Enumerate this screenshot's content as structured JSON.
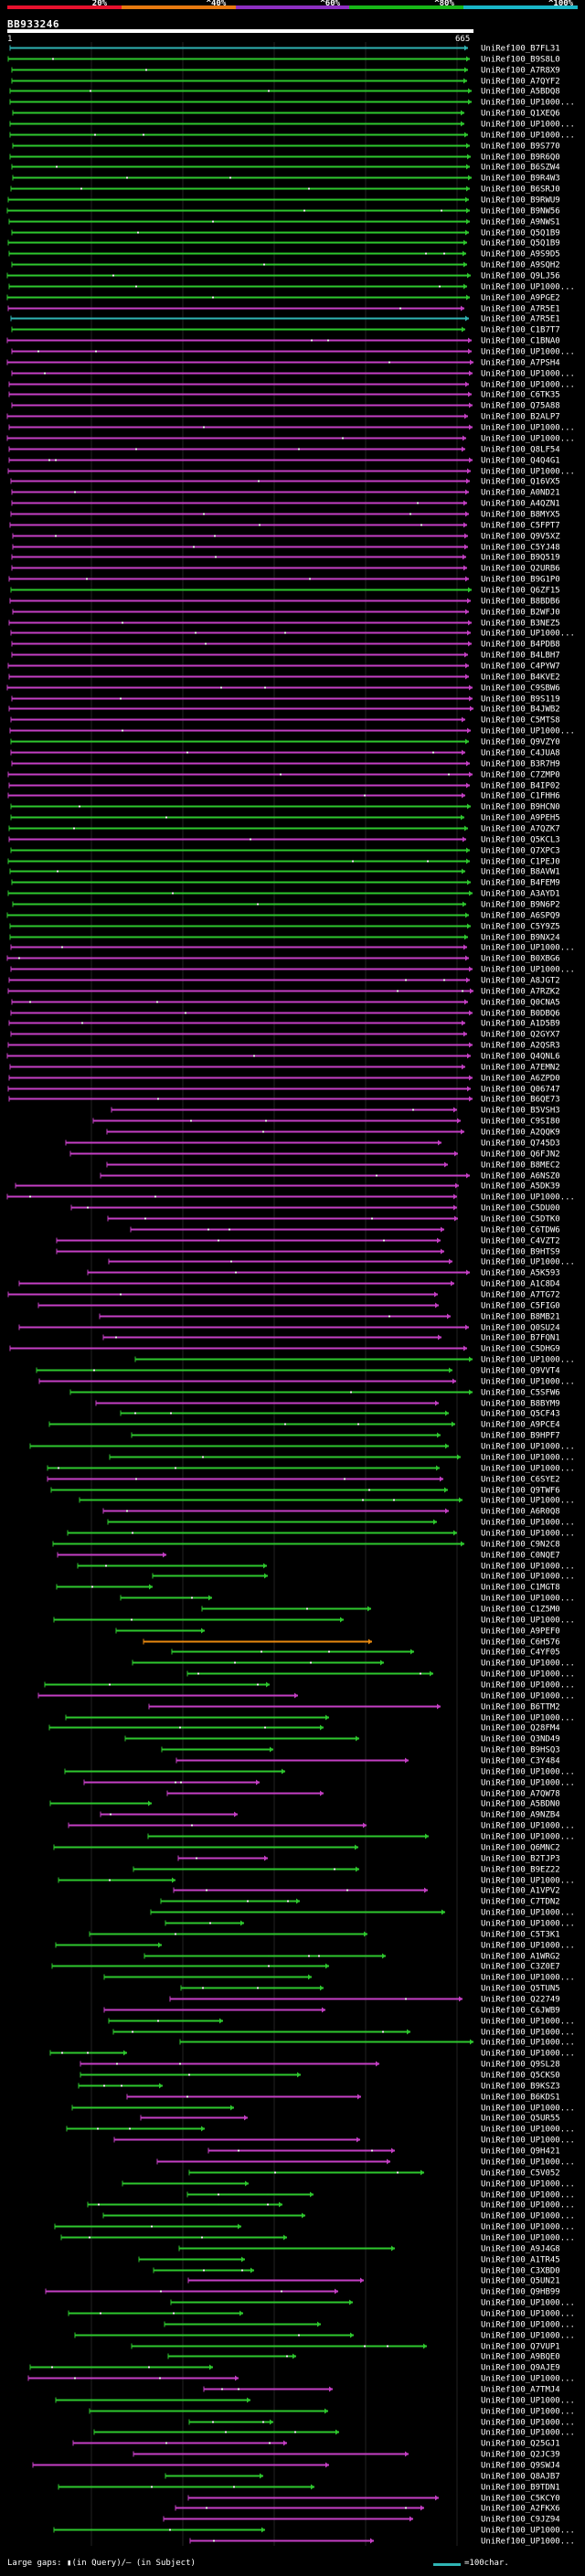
{
  "legend": {
    "segments": [
      {
        "label": "20%",
        "color": "#e8112d"
      },
      {
        "label": "^40%",
        "color": "#e87a10"
      },
      {
        "label": "^60%",
        "color": "#8e2fc2"
      },
      {
        "label": "^80%",
        "color": "#18b818"
      },
      {
        "label": "^100%",
        "color": "#19b6c8"
      }
    ]
  },
  "query": {
    "id": "BB933246",
    "start": "1",
    "end": "665"
  },
  "colors": {
    "green": "#2ec72e",
    "magenta": "#c43fc4",
    "cyan": "#2fb4b4",
    "orange": "#e8890f",
    "dot": "#f2f2f2"
  },
  "hits": [
    {
      "label": "UniRef100_B7FL31",
      "color": "cyan"
    },
    {
      "label": "UniRef100_B9S8L0",
      "color": "green"
    },
    {
      "label": "UniRef100_A7R8X9",
      "color": "green"
    },
    {
      "label": "UniRef100_A7QYF2",
      "color": "green"
    },
    {
      "label": "UniRef100_A5BDQ8",
      "color": "green"
    },
    {
      "label": "UniRef100_UP1000...",
      "color": "green"
    },
    {
      "label": "UniRef100_Q1XEQ6",
      "color": "green"
    },
    {
      "label": "UniRef100_UP1000...",
      "color": "green"
    },
    {
      "label": "UniRef100_UP1000...",
      "color": "green"
    },
    {
      "label": "UniRef100_B9S770",
      "color": "green"
    },
    {
      "label": "UniRef100_B9R6Q0",
      "color": "green"
    },
    {
      "label": "UniRef100_B6SZW4",
      "color": "green"
    },
    {
      "label": "UniRef100_B9R4W3",
      "color": "green"
    },
    {
      "label": "UniRef100_B6SRJ0",
      "color": "green"
    },
    {
      "label": "UniRef100_B9RWU9",
      "color": "green"
    },
    {
      "label": "UniRef100_B9NW56",
      "color": "green"
    },
    {
      "label": "UniRef100_A9NWS1",
      "color": "green"
    },
    {
      "label": "UniRef100_Q5Q1B9",
      "color": "green"
    },
    {
      "label": "UniRef100_Q5Q1B9",
      "color": "green"
    },
    {
      "label": "UniRef100_A9S9D5",
      "color": "green"
    },
    {
      "label": "UniRef100_A9SQH2",
      "color": "green"
    },
    {
      "label": "UniRef100_Q9LJ56",
      "color": "green"
    },
    {
      "label": "UniRef100_UP1000...",
      "color": "green"
    },
    {
      "label": "UniRef100_A9PGE2",
      "color": "green"
    },
    {
      "label": "UniRef100_A7R5E1",
      "color": "magenta"
    },
    {
      "label": "UniRef100_A7R5E1",
      "color": "cyan"
    },
    {
      "label": "UniRef100_C1B7T7",
      "color": "green"
    },
    {
      "label": "UniRef100_C1BNA0",
      "color": "magenta"
    },
    {
      "label": "UniRef100_UP1000...",
      "color": "magenta"
    },
    {
      "label": "UniRef100_A7PSH4",
      "color": "magenta"
    },
    {
      "label": "UniRef100_UP1000...",
      "color": "magenta"
    },
    {
      "label": "UniRef100_UP1000...",
      "color": "magenta"
    },
    {
      "label": "UniRef100_C6TK35",
      "color": "magenta"
    },
    {
      "label": "UniRef100_Q75A88",
      "color": "magenta"
    },
    {
      "label": "UniRef100_B2ALP7",
      "color": "magenta"
    },
    {
      "label": "UniRef100_UP1000...",
      "color": "magenta"
    },
    {
      "label": "UniRef100_UP1000...",
      "color": "magenta"
    },
    {
      "label": "UniRef100_Q8LF54",
      "color": "magenta"
    },
    {
      "label": "UniRef100_Q4Q4G1",
      "color": "magenta"
    },
    {
      "label": "UniRef100_UP1000...",
      "color": "magenta"
    },
    {
      "label": "UniRef100_Q16VX5",
      "color": "magenta"
    },
    {
      "label": "UniRef100_A0ND21",
      "color": "magenta"
    },
    {
      "label": "UniRef100_A4QZN1",
      "color": "magenta"
    },
    {
      "label": "UniRef100_B8MYX5",
      "color": "magenta"
    },
    {
      "label": "UniRef100_C5FPT7",
      "color": "magenta"
    },
    {
      "label": "UniRef100_Q9V5XZ",
      "color": "magenta"
    },
    {
      "label": "UniRef100_C5YJ48",
      "color": "magenta"
    },
    {
      "label": "UniRef100_B9Q519",
      "color": "magenta"
    },
    {
      "label": "UniRef100_Q2URB6",
      "color": "magenta"
    },
    {
      "label": "UniRef100_B9G1P0",
      "color": "magenta"
    },
    {
      "label": "UniRef100_Q6ZF15",
      "color": "green"
    },
    {
      "label": "UniRef100_B8BDB6",
      "color": "magenta"
    },
    {
      "label": "UniRef100_B2WFJ0",
      "color": "magenta"
    },
    {
      "label": "UniRef100_B3NEZ5",
      "color": "magenta"
    },
    {
      "label": "UniRef100_UP1000...",
      "color": "magenta"
    },
    {
      "label": "UniRef100_B4PDB8",
      "color": "magenta"
    },
    {
      "label": "UniRef100_B4LBH7",
      "color": "magenta"
    },
    {
      "label": "UniRef100_C4PYW7",
      "color": "magenta"
    },
    {
      "label": "UniRef100_B4KVE2",
      "color": "magenta"
    },
    {
      "label": "UniRef100_C9SBW6",
      "color": "magenta"
    },
    {
      "label": "UniRef100_B9S119",
      "color": "magenta"
    },
    {
      "label": "UniRef100_B4JWB2",
      "color": "magenta"
    },
    {
      "label": "UniRef100_C5MTS8",
      "color": "magenta"
    },
    {
      "label": "UniRef100_UP1000...",
      "color": "magenta"
    },
    {
      "label": "UniRef100_Q9VZY0",
      "color": "green"
    },
    {
      "label": "UniRef100_C4JUA8",
      "color": "magenta"
    },
    {
      "label": "UniRef100_B3R7H9",
      "color": "magenta"
    },
    {
      "label": "UniRef100_C7ZMP0",
      "color": "magenta"
    },
    {
      "label": "UniRef100_B4IP02",
      "color": "magenta"
    },
    {
      "label": "UniRef100_C1FHH6",
      "color": "magenta"
    },
    {
      "label": "UniRef100_B9HCN0",
      "color": "green"
    },
    {
      "label": "UniRef100_A9PEH5",
      "color": "green"
    },
    {
      "label": "UniRef100_A7QZK7",
      "color": "green"
    },
    {
      "label": "UniRef100_Q5KCL3",
      "color": "magenta"
    },
    {
      "label": "UniRef100_Q7XPC3",
      "color": "green"
    },
    {
      "label": "UniRef100_C1PEJ0",
      "color": "green"
    },
    {
      "label": "UniRef100_B8AVW1",
      "color": "green"
    },
    {
      "label": "UniRef100_B4FEM9",
      "color": "green"
    },
    {
      "label": "UniRef100_A3AYD1",
      "color": "green"
    },
    {
      "label": "UniRef100_B9N6P2",
      "color": "green"
    },
    {
      "label": "UniRef100_A6SPQ9",
      "color": "green"
    },
    {
      "label": "UniRef100_C5Y9Z5",
      "color": "green"
    },
    {
      "label": "UniRef100_B9NX24",
      "color": "green"
    },
    {
      "label": "UniRef100_UP1000...",
      "color": "magenta"
    },
    {
      "label": "UniRef100_B0XBG6",
      "color": "magenta"
    },
    {
      "label": "UniRef100_UP1000...",
      "color": "magenta"
    },
    {
      "label": "UniRef100_A8JGT2",
      "color": "magenta"
    },
    {
      "label": "UniRef100_A7RZK2",
      "color": "magenta"
    },
    {
      "label": "UniRef100_Q0CNA5",
      "color": "magenta"
    },
    {
      "label": "UniRef100_B0DBQ6",
      "color": "magenta"
    },
    {
      "label": "UniRef100_A1D5B9",
      "color": "magenta"
    },
    {
      "label": "UniRef100_Q2GYX7",
      "color": "magenta"
    },
    {
      "label": "UniRef100_A2QSR3",
      "color": "magenta"
    },
    {
      "label": "UniRef100_Q4QNL6",
      "color": "magenta"
    },
    {
      "label": "UniRef100_A7EMN2",
      "color": "magenta"
    },
    {
      "label": "UniRef100_A6ZPD0",
      "color": "magenta"
    },
    {
      "label": "UniRef100_Q06747",
      "color": "magenta"
    },
    {
      "label": "UniRef100_B6QE73",
      "color": "magenta"
    },
    {
      "label": "UniRef100_B5VSH3",
      "color": "magenta"
    },
    {
      "label": "UniRef100_C9SI80",
      "color": "magenta"
    },
    {
      "label": "UniRef100_A2QQK9",
      "color": "magenta"
    },
    {
      "label": "UniRef100_Q745D3",
      "color": "magenta"
    },
    {
      "label": "UniRef100_Q6FJN2",
      "color": "magenta"
    },
    {
      "label": "UniRef100_B8MEC2",
      "color": "magenta"
    },
    {
      "label": "UniRef100_A6NSZ0",
      "color": "magenta"
    },
    {
      "label": "UniRef100_A5DK39",
      "color": "magenta"
    },
    {
      "label": "UniRef100_UP1000...",
      "color": "magenta"
    },
    {
      "label": "UniRef100_C5DU00",
      "color": "magenta"
    },
    {
      "label": "UniRef100_C5DTK0",
      "color": "magenta"
    },
    {
      "label": "UniRef100_C6TDW6",
      "color": "magenta"
    },
    {
      "label": "UniRef100_C4VZT2",
      "color": "magenta"
    },
    {
      "label": "UniRef100_B9HTS9",
      "color": "magenta"
    },
    {
      "label": "UniRef100_UP1000...",
      "color": "magenta"
    },
    {
      "label": "UniRef100_A5K593",
      "color": "magenta"
    },
    {
      "label": "UniRef100_A1C8D4",
      "color": "magenta"
    },
    {
      "label": "UniRef100_A7TG72",
      "color": "magenta"
    },
    {
      "label": "UniRef100_C5FIG0",
      "color": "magenta"
    },
    {
      "label": "UniRef100_B8MB21",
      "color": "magenta"
    },
    {
      "label": "UniRef100_Q0SU24",
      "color": "magenta"
    },
    {
      "label": "UniRef100_B7FQN1",
      "color": "magenta"
    },
    {
      "label": "UniRef100_C5DHG9",
      "color": "magenta"
    },
    {
      "label": "UniRef100_UP1000...",
      "color": "green"
    },
    {
      "label": "UniRef100_Q9VVT4",
      "color": "green"
    },
    {
      "label": "UniRef100_UP1000...",
      "color": "magenta"
    },
    {
      "label": "UniRef100_C5SFW6",
      "color": "green"
    },
    {
      "label": "UniRef100_B8BYM9",
      "color": "magenta"
    },
    {
      "label": "UniRef100_Q5CF43",
      "color": "green"
    },
    {
      "label": "UniRef100_A9PCE4",
      "color": "green"
    },
    {
      "label": "UniRef100_B9HPF7",
      "color": "green"
    },
    {
      "label": "UniRef100_UP1000...",
      "color": "green"
    },
    {
      "label": "UniRef100_UP1000...",
      "color": "green"
    },
    {
      "label": "UniRef100_UP1000...",
      "color": "green"
    },
    {
      "label": "UniRef100_C6SYE2",
      "color": "magenta"
    },
    {
      "label": "UniRef100_Q9TWF6",
      "color": "green"
    },
    {
      "label": "UniRef100_UP1000...",
      "color": "green"
    },
    {
      "label": "UniRef100_A6R0Q8",
      "color": "magenta"
    },
    {
      "label": "UniRef100_UP1000...",
      "color": "green"
    },
    {
      "label": "UniRef100_UP1000...",
      "color": "green"
    },
    {
      "label": "UniRef100_C9N2C8",
      "color": "green"
    },
    {
      "label": "UniRef100_C0NQE7",
      "color": "magenta"
    },
    {
      "label": "UniRef100_UP1000...",
      "color": "green"
    },
    {
      "label": "UniRef100_UP1000...",
      "color": "green"
    },
    {
      "label": "UniRef100_C1MGT8",
      "color": "green"
    },
    {
      "label": "UniRef100_UP1000...",
      "color": "green"
    },
    {
      "label": "UniRef100_C1Z5M0",
      "color": "green"
    },
    {
      "label": "UniRef100_UP1000...",
      "color": "green"
    },
    {
      "label": "UniRef100_A9PEF0",
      "color": "green"
    },
    {
      "label": "UniRef100_C6H576",
      "color": "orange"
    },
    {
      "label": "UniRef100_C4YF05",
      "color": "green"
    },
    {
      "label": "UniRef100_UP1000...",
      "color": "green"
    },
    {
      "label": "UniRef100_UP1000...",
      "color": "green"
    },
    {
      "label": "UniRef100_UP1000...",
      "color": "green"
    },
    {
      "label": "UniRef100_UP1000...",
      "color": "magenta"
    },
    {
      "label": "UniRef100_B6TTM2",
      "color": "magenta"
    },
    {
      "label": "UniRef100_UP1000...",
      "color": "green"
    },
    {
      "label": "UniRef100_Q28FM4",
      "color": "green"
    },
    {
      "label": "UniRef100_Q3ND49",
      "color": "green"
    },
    {
      "label": "UniRef100_B9HSQ3",
      "color": "green"
    },
    {
      "label": "UniRef100_C3Y484",
      "color": "magenta"
    },
    {
      "label": "UniRef100_UP1000...",
      "color": "green"
    },
    {
      "label": "UniRef100_UP1000...",
      "color": "magenta"
    },
    {
      "label": "UniRef100_A7QW78",
      "color": "magenta"
    },
    {
      "label": "UniRef100_A5BDN0",
      "color": "green"
    },
    {
      "label": "UniRef100_A9NZB4",
      "color": "magenta"
    },
    {
      "label": "UniRef100_UP1000...",
      "color": "magenta"
    },
    {
      "label": "UniRef100_UP1000...",
      "color": "green"
    },
    {
      "label": "UniRef100_Q6MNC2",
      "color": "green"
    },
    {
      "label": "UniRef100_B2TJP3",
      "color": "magenta"
    },
    {
      "label": "UniRef100_B9EZ22",
      "color": "green"
    },
    {
      "label": "UniRef100_UP1000...",
      "color": "green"
    },
    {
      "label": "UniRef100_A1VPV2",
      "color": "magenta"
    },
    {
      "label": "UniRef100_C7TDN2",
      "color": "green"
    },
    {
      "label": "UniRef100_UP1000...",
      "color": "green"
    },
    {
      "label": "UniRef100_UP1000...",
      "color": "green"
    },
    {
      "label": "UniRef100_C5T3K1",
      "color": "green"
    },
    {
      "label": "UniRef100_UP1000...",
      "color": "green"
    },
    {
      "label": "UniRef100_A1WRG2",
      "color": "green"
    },
    {
      "label": "UniRef100_C3Z0E7",
      "color": "green"
    },
    {
      "label": "UniRef100_UP1000...",
      "color": "green"
    },
    {
      "label": "UniRef100_Q5TUN5",
      "color": "green"
    },
    {
      "label": "UniRef100_Q22749",
      "color": "magenta"
    },
    {
      "label": "UniRef100_C6JWB9",
      "color": "magenta"
    },
    {
      "label": "UniRef100_UP1000...",
      "color": "green"
    },
    {
      "label": "UniRef100_UP1000...",
      "color": "green"
    },
    {
      "label": "UniRef100_UP1000...",
      "color": "green"
    },
    {
      "label": "UniRef100_UP1000...",
      "color": "green"
    },
    {
      "label": "UniRef100_Q9SL28",
      "color": "magenta"
    },
    {
      "label": "UniRef100_Q5CKS0",
      "color": "green"
    },
    {
      "label": "UniRef100_B9KSZ3",
      "color": "green"
    },
    {
      "label": "UniRef100_B6KDS1",
      "color": "magenta"
    },
    {
      "label": "UniRef100_UP1000...",
      "color": "green"
    },
    {
      "label": "UniRef100_Q5UR55",
      "color": "magenta"
    },
    {
      "label": "UniRef100_UP1000...",
      "color": "green"
    },
    {
      "label": "UniRef100_UP1000...",
      "color": "magenta"
    },
    {
      "label": "UniRef100_Q9H421",
      "color": "magenta"
    },
    {
      "label": "UniRef100_UP1000...",
      "color": "magenta"
    },
    {
      "label": "UniRef100_C5V052",
      "color": "green"
    },
    {
      "label": "UniRef100_UP1000...",
      "color": "green"
    },
    {
      "label": "UniRef100_UP1000...",
      "color": "green"
    },
    {
      "label": "UniRef100_UP1000...",
      "color": "green"
    },
    {
      "label": "UniRef100_UP1000...",
      "color": "green"
    },
    {
      "label": "UniRef100_UP1000...",
      "color": "green"
    },
    {
      "label": "UniRef100_UP1000...",
      "color": "green"
    },
    {
      "label": "UniRef100_A9J4G8",
      "color": "green"
    },
    {
      "label": "UniRef100_A1TR45",
      "color": "green"
    },
    {
      "label": "UniRef100_C3XBD0",
      "color": "green"
    },
    {
      "label": "UniRef100_Q5UN21",
      "color": "magenta"
    },
    {
      "label": "UniRef100_Q9HB99",
      "color": "magenta"
    },
    {
      "label": "UniRef100_UP1000...",
      "color": "green"
    },
    {
      "label": "UniRef100_UP1000...",
      "color": "green"
    },
    {
      "label": "UniRef100_UP1000...",
      "color": "green"
    },
    {
      "label": "UniRef100_UP1000...",
      "color": "green"
    },
    {
      "label": "UniRef100_Q7VUP1",
      "color": "green"
    },
    {
      "label": "UniRef100_A9BQE0",
      "color": "green"
    },
    {
      "label": "UniRef100_Q9AJE9",
      "color": "green"
    },
    {
      "label": "UniRef100_UP1000...",
      "color": "magenta"
    },
    {
      "label": "UniRef100_A7TMJ4",
      "color": "magenta"
    },
    {
      "label": "UniRef100_UP1000...",
      "color": "green"
    },
    {
      "label": "UniRef100_UP1000...",
      "color": "green"
    },
    {
      "label": "UniRef100_UP1000...",
      "color": "green"
    },
    {
      "label": "UniRef100_UP1000...",
      "color": "green"
    },
    {
      "label": "UniRef100_Q25GJ1",
      "color": "magenta"
    },
    {
      "label": "UniRef100_Q2JC39",
      "color": "magenta"
    },
    {
      "label": "UniRef100_Q9SWJ4",
      "color": "magenta"
    },
    {
      "label": "UniRef100_Q8AJB7",
      "color": "green"
    },
    {
      "label": "UniRef100_B9TDN1",
      "color": "green"
    },
    {
      "label": "UniRef100_C5KCY0",
      "color": "magenta"
    },
    {
      "label": "UniRef100_A2FKX6",
      "color": "magenta"
    },
    {
      "label": "UniRef100_C9JZ94",
      "color": "magenta"
    },
    {
      "label": "UniRef100_UP1000...",
      "color": "green"
    },
    {
      "label": "UniRef100_UP1000...",
      "color": "magenta"
    }
  ],
  "footer": {
    "gap_label": "Large gaps: ▮(in Query)/— (in Subject)",
    "scale_label": "=100char."
  }
}
